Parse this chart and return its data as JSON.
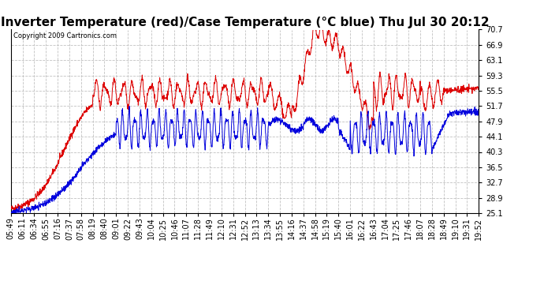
{
  "title": "Inverter Temperature (red)/Case Temperature (°C blue) Thu Jul 30 20:12",
  "copyright": "Copyright 2009 Cartronics.com",
  "yticks": [
    25.1,
    28.9,
    32.7,
    36.5,
    40.3,
    44.1,
    47.9,
    51.7,
    55.5,
    59.3,
    63.1,
    66.9,
    70.7
  ],
  "ymin": 25.1,
  "ymax": 70.7,
  "xtick_labels": [
    "05:49",
    "06:11",
    "06:34",
    "06:55",
    "07:16",
    "07:37",
    "07:58",
    "08:19",
    "08:40",
    "09:01",
    "09:22",
    "09:43",
    "10:04",
    "10:25",
    "10:46",
    "11:07",
    "11:28",
    "11:49",
    "12:10",
    "12:31",
    "12:52",
    "13:13",
    "13:34",
    "13:55",
    "14:16",
    "14:37",
    "14:58",
    "15:19",
    "15:40",
    "16:01",
    "16:22",
    "16:43",
    "17:04",
    "17:25",
    "17:46",
    "18:07",
    "18:28",
    "18:49",
    "19:10",
    "19:31",
    "19:52"
  ],
  "background_color": "#ffffff",
  "grid_color": "#bbbbbb",
  "red_color": "#dd0000",
  "blue_color": "#0000dd",
  "title_fontsize": 11,
  "tick_fontsize": 7,
  "n_points": 2000,
  "n_ticks": 41
}
